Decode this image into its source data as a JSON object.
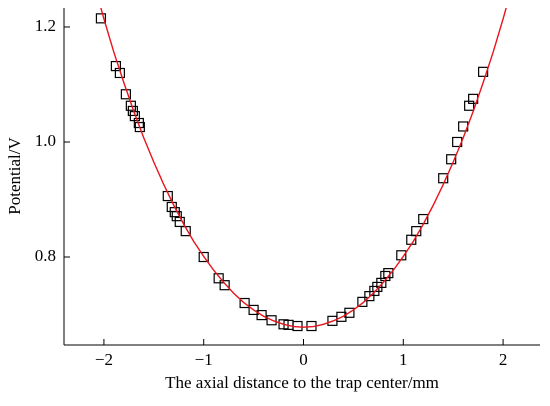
{
  "chart_data": {
    "type": "scatter",
    "xlabel": "The axial distance to the trap center/mm",
    "ylabel": "Potential/V",
    "xlim": [
      -2.4,
      2.37
    ],
    "ylim": [
      0.647,
      1.233
    ],
    "xticks": [
      {
        "value": -2,
        "label": "−2"
      },
      {
        "value": -1,
        "label": "−1"
      },
      0,
      1,
      2
    ],
    "yticks": [
      0.8,
      {
        "value": 1,
        "label": "1.0"
      },
      1.2
    ],
    "series": [
      {
        "mark": "square",
        "color": "#000000",
        "x": [
          -2.03,
          -1.88,
          -1.84,
          -1.78,
          -1.73,
          -1.71,
          -1.69,
          -1.65,
          -1.64,
          -1.36,
          -1.32,
          -1.29,
          -1.27,
          -1.24,
          -1.18,
          -1.0,
          -0.85,
          -0.79,
          -0.59,
          -0.5,
          -0.42,
          -0.32,
          -0.2,
          -0.15,
          -0.06,
          0.08,
          0.29,
          0.38,
          0.46,
          0.59,
          0.66,
          0.71,
          0.74,
          0.78,
          0.82,
          0.85,
          0.98,
          1.08,
          1.13,
          1.2,
          1.4,
          1.48,
          1.54,
          1.6,
          1.66,
          1.7,
          1.8
        ],
        "values": [
          1.215,
          1.132,
          1.12,
          1.083,
          1.063,
          1.054,
          1.045,
          1.033,
          1.026,
          0.906,
          0.887,
          0.878,
          0.871,
          0.861,
          0.845,
          0.8,
          0.763,
          0.751,
          0.72,
          0.708,
          0.699,
          0.69,
          0.683,
          0.682,
          0.68,
          0.68,
          0.689,
          0.696,
          0.703,
          0.722,
          0.732,
          0.741,
          0.748,
          0.755,
          0.767,
          0.772,
          0.803,
          0.83,
          0.845,
          0.866,
          0.937,
          0.97,
          1.0,
          1.027,
          1.063,
          1.075,
          1.122
        ]
      },
      {
        "mark": "line",
        "color": "#e8141c",
        "x": [
          -2.1,
          -2.0,
          -1.9,
          -1.8,
          -1.7,
          -1.6,
          -1.5,
          -1.4,
          -1.3,
          -1.2,
          -1.1,
          -1.0,
          -0.9,
          -0.8,
          -0.7,
          -0.6,
          -0.5,
          -0.4,
          -0.3,
          -0.2,
          -0.1,
          0,
          0.1,
          0.2,
          0.3,
          0.4,
          0.5,
          0.6,
          0.7,
          0.8,
          0.9,
          1.0,
          1.1,
          1.2,
          1.3,
          1.4,
          1.5,
          1.6,
          1.7,
          1.8,
          1.9,
          2.0,
          2.1
        ],
        "values": [
          1.276,
          1.214,
          1.156,
          1.103,
          1.053,
          1.007,
          0.965,
          0.926,
          0.89,
          0.857,
          0.827,
          0.801,
          0.777,
          0.756,
          0.737,
          0.721,
          0.708,
          0.697,
          0.689,
          0.683,
          0.679,
          0.678,
          0.679,
          0.683,
          0.689,
          0.697,
          0.708,
          0.721,
          0.737,
          0.756,
          0.777,
          0.801,
          0.827,
          0.857,
          0.89,
          0.926,
          0.965,
          1.007,
          1.053,
          1.103,
          1.156,
          1.214,
          1.276
        ]
      }
    ]
  }
}
